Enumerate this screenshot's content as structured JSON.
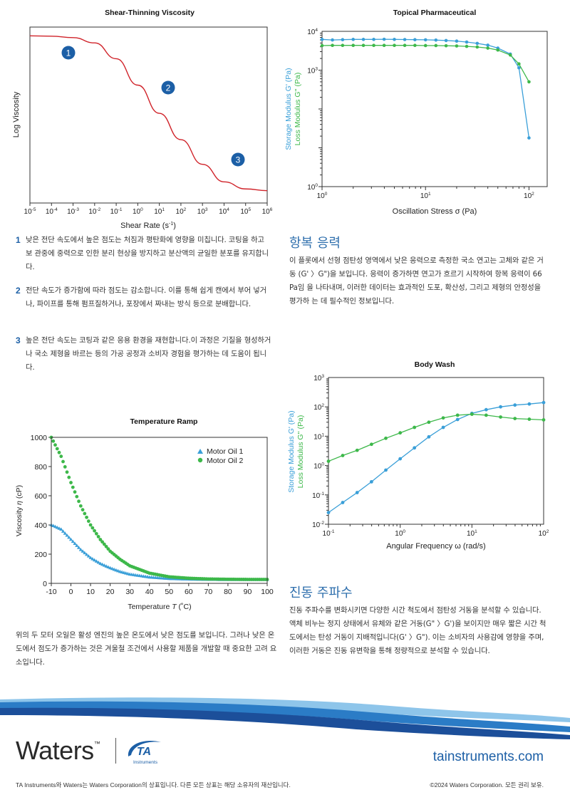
{
  "shear": {
    "title": "Shear-Thinning Viscosity",
    "ylabel": "Log Viscosity",
    "xlabel": "Shear Rate (s",
    "xlabel_sup": "-1",
    "xlabel_end": ")",
    "ticks": [
      {
        "b": "10",
        "e": "-5"
      },
      {
        "b": "10",
        "e": "-4"
      },
      {
        "b": "10",
        "e": "-3"
      },
      {
        "b": "10",
        "e": "-2"
      },
      {
        "b": "10",
        "e": "-1"
      },
      {
        "b": "10",
        "e": "0"
      },
      {
        "b": "10",
        "e": "1"
      },
      {
        "b": "10",
        "e": "2"
      },
      {
        "b": "10",
        "e": "3"
      },
      {
        "b": "10",
        "e": "4"
      },
      {
        "b": "10",
        "e": "5"
      },
      {
        "b": "10",
        "e": "6"
      }
    ],
    "markers": [
      "1",
      "2",
      "3"
    ],
    "colors": {
      "curve": "#d0232a",
      "marker": "#1c5fa6"
    }
  },
  "topical": {
    "title": "Topical Pharmaceutical",
    "ylabel_storage": "Storage Modulus G' (Pa)",
    "ylabel_loss": "Loss Modulus G'' (Pa)",
    "xlabel": "Oscillation Stress σ (Pa)",
    "xticks": [
      {
        "b": "10",
        "e": "0"
      },
      {
        "b": "10",
        "e": "1"
      },
      {
        "b": "10",
        "e": "2"
      }
    ],
    "yticks": [
      {
        "b": "10",
        "e": "0"
      },
      {
        "b": "10",
        "e": "3"
      },
      {
        "b": "10",
        "e": "4"
      }
    ]
  },
  "points": [
    {
      "n": "1",
      "text": "낮은 전단 속도에서 높은 점도는 처짐과 평탄화에 영향을 미칩니다. 코팅을 하고 보 관중에 중력으로 인한 분리 현상을 방지하고 분산액의 균일한 분포를 유지합니다."
    },
    {
      "n": "2",
      "text": "전단 속도가 증가함에 따라 점도는 감소합니다. 이를 통해 쉽게 캔에서 부어 넣거나, 파이프를 통해 펌프질하거나, 포장에서 짜내는 방식 등으로 분배합니다."
    },
    {
      "n": "3",
      "text": "높은 전단 속도는 코팅과 같은 응용 환경을 재현합니다.이 과정은 기질을 형성하거나 국소 제형을 바르는 등의 가공 공정과 소비자 경험을 평가하는 데 도움이 됩니다."
    }
  ],
  "yield": {
    "heading": "항복 응력",
    "body": "이 플롯에서 선형 점탄성 영역에서 낮은 응력으로 측정한 국소 연고는 고체와 같은 거동 (G' 〉G\")을 보입니다. 응력이 증가하면 연고가 흐르기 시작하여 항복 응력이 66 Pa임 을 나타내며, 이러한 데이터는 효과적인 도포, 확산성, 그리고 제형의 안정성을 평가하 는 데 필수적인 정보입니다."
  },
  "bodywash": {
    "title": "Body Wash",
    "ylabel_storage": "Storage Modulus G' (Pa)",
    "ylabel_loss": "Loss Modulus G'' (Pa)",
    "xlabel": "Angular Frequency ω (rad/s)",
    "xticks": [
      {
        "b": "10",
        "e": "-1"
      },
      {
        "b": "10",
        "e": "0"
      },
      {
        "b": "10",
        "e": "1"
      },
      {
        "b": "10",
        "e": "2"
      }
    ],
    "yticks": [
      {
        "b": "10",
        "e": "-2"
      },
      {
        "b": "10",
        "e": "-1"
      },
      {
        "b": "10",
        "e": "0"
      },
      {
        "b": "10",
        "e": "1"
      },
      {
        "b": "10",
        "e": "2"
      },
      {
        "b": "10",
        "e": "3"
      }
    ]
  },
  "temp": {
    "title": "Temperature Ramp",
    "ylabel_pre": "Viscosity ",
    "ylabel_sym": "η",
    "ylabel_post": " (cP)",
    "xlabel_pre": "Temperature ",
    "xlabel_sym": "T",
    "xlabel_post": " (˚C)",
    "xticks": [
      "-10",
      "0",
      "10",
      "20",
      "30",
      "40",
      "50",
      "60",
      "70",
      "80",
      "90",
      "100"
    ],
    "yticks": [
      "0",
      "200",
      "400",
      "600",
      "800",
      "1000"
    ],
    "legend": [
      "Motor Oil 1",
      "Motor Oil 2"
    ]
  },
  "temp_text": "위의 두 모터 오일은 활성 엔진의 높은 온도에서 낮은 점도를 보입니다. 그러나 낮은 온 도에서 점도가 증가하는 것은 겨울철 조건에서 사용할 제품을 개발할 때 중요한 고려 요소입니다.",
  "osc": {
    "heading": "진동 주파수",
    "body": "진동 주파수를 변화시키면 다양한 시간 척도에서 점탄성 거동을 분석할 수 있습니다. 액체 비누는 정지 상태에서 유체와 같은 거동(G\" 〉G')을 보이지만 매우 짧은 시간 척 도에서는 탄성 거동이 지배적입니다(G' 〉G\"). 이는 소비자의 사용감에 영향을 주며, 이러한 거동은 진동 유변학을 통해 정량적으로 분석할 수 있습니다."
  },
  "footer": {
    "waters": "Waters",
    "tm": "™",
    "ta_mark": "TA",
    "ta_sub": "Instruments",
    "url": "tainstruments.com",
    "legal": "TA Instruments와 Waters는 Waters Corporation의 상표입니다. 다른 모든 상표는 해당 소유자의 재산입니다.",
    "copyright": "©2024 Waters Corporation. 모든 권리 보유."
  },
  "colors": {
    "blue": "#3a9fd8",
    "green": "#3db84a",
    "heading": "#2f6fad",
    "num": "#1c5fa6",
    "wave": "#1c4f9a"
  },
  "chart_data": [
    {
      "type": "line",
      "title": "Shear-Thinning Viscosity",
      "xlabel": "Shear Rate (s-1)",
      "ylabel": "Log Viscosity",
      "xscale": "log",
      "xlim": [
        1e-05,
        1000000
      ],
      "series": [
        {
          "x": [
            1e-05,
            0.0001,
            0.001,
            0.01,
            0.1,
            1,
            10,
            100,
            1000,
            10000,
            100000,
            1000000
          ],
          "y": [
            0.95,
            0.948,
            0.94,
            0.91,
            0.82,
            0.67,
            0.51,
            0.36,
            0.22,
            0.12,
            0.08,
            0.07
          ]
        }
      ]
    },
    {
      "type": "line",
      "title": "Topical Pharmaceutical",
      "xlabel": "Oscillation Stress σ (Pa)",
      "xscale": "log",
      "yscale": "log",
      "xlim": [
        1,
        150
      ],
      "ylim": [
        1,
        10000
      ],
      "series": [
        {
          "name": "Storage Modulus G' (Pa)",
          "color": "#3a9fd8",
          "x": [
            1,
            1.26,
            1.58,
            2,
            2.51,
            3.16,
            3.98,
            5,
            6.3,
            7.9,
            10,
            12.6,
            15.8,
            20,
            25,
            31.6,
            40,
            50,
            66,
            80,
            100
          ],
          "y": [
            6200,
            6000,
            6100,
            6200,
            6200,
            6200,
            6250,
            6200,
            6150,
            6100,
            6050,
            5950,
            5800,
            5600,
            5300,
            4900,
            4400,
            3700,
            2600,
            1150,
            18
          ]
        },
        {
          "name": "Loss Modulus G'' (Pa)",
          "color": "#3db84a",
          "x": [
            1,
            1.26,
            1.58,
            2,
            2.51,
            3.16,
            3.98,
            5,
            6.3,
            7.9,
            10,
            12.6,
            15.8,
            20,
            25,
            31.6,
            40,
            50,
            66,
            80,
            100
          ],
          "y": [
            4300,
            4350,
            4350,
            4350,
            4350,
            4350,
            4350,
            4350,
            4350,
            4350,
            4300,
            4300,
            4250,
            4200,
            4100,
            3950,
            3700,
            3300,
            2450,
            1450,
            500
          ]
        }
      ]
    },
    {
      "type": "scatter",
      "title": "Temperature Ramp",
      "xlabel": "Temperature T (˚C)",
      "ylabel": "Viscosity η (cP)",
      "xlim": [
        -10,
        100
      ],
      "ylim": [
        0,
        1000
      ],
      "series": [
        {
          "name": "Motor Oil 1",
          "color": "#3a9fd8",
          "marker": "triangle",
          "x": [
            -10,
            -5,
            0,
            5,
            10,
            15,
            20,
            25,
            30,
            40,
            50,
            60,
            70,
            80,
            90,
            100
          ],
          "y": [
            400,
            370,
            300,
            230,
            175,
            135,
            105,
            80,
            62,
            42,
            32,
            28,
            26,
            25,
            25,
            25
          ]
        },
        {
          "name": "Motor Oil 2",
          "color": "#3db84a",
          "marker": "circle",
          "x": [
            -10,
            -5,
            0,
            5,
            10,
            15,
            20,
            25,
            30,
            40,
            50,
            60,
            70,
            80,
            90,
            100
          ],
          "y": [
            1000,
            870,
            690,
            530,
            400,
            300,
            220,
            165,
            120,
            70,
            45,
            35,
            30,
            28,
            27,
            27
          ]
        }
      ]
    },
    {
      "type": "line",
      "title": "Body Wash",
      "xlabel": "Angular Frequency ω (rad/s)",
      "xscale": "log",
      "yscale": "log",
      "xlim": [
        0.1,
        100
      ],
      "ylim": [
        0.01,
        1000
      ],
      "series": [
        {
          "name": "Storage Modulus G' (Pa)",
          "color": "#3a9fd8",
          "x": [
            0.1,
            0.158,
            0.251,
            0.398,
            0.631,
            1,
            1.58,
            2.51,
            3.98,
            6.31,
            10,
            15.8,
            25.1,
            39.8,
            63.1,
            100
          ],
          "y": [
            0.025,
            0.055,
            0.12,
            0.28,
            0.7,
            1.7,
            4,
            9.5,
            20,
            37,
            60,
            80,
            100,
            115,
            125,
            140
          ]
        },
        {
          "name": "Loss Modulus G'' (Pa)",
          "color": "#3db84a",
          "x": [
            0.1,
            0.158,
            0.251,
            0.398,
            0.631,
            1,
            1.58,
            2.51,
            3.98,
            6.31,
            10,
            15.8,
            25.1,
            39.8,
            63.1,
            100
          ],
          "y": [
            1.4,
            2.2,
            3.3,
            5.3,
            8.5,
            13,
            20,
            30,
            42,
            52,
            56,
            52,
            45,
            40,
            38,
            36
          ]
        }
      ]
    }
  ]
}
